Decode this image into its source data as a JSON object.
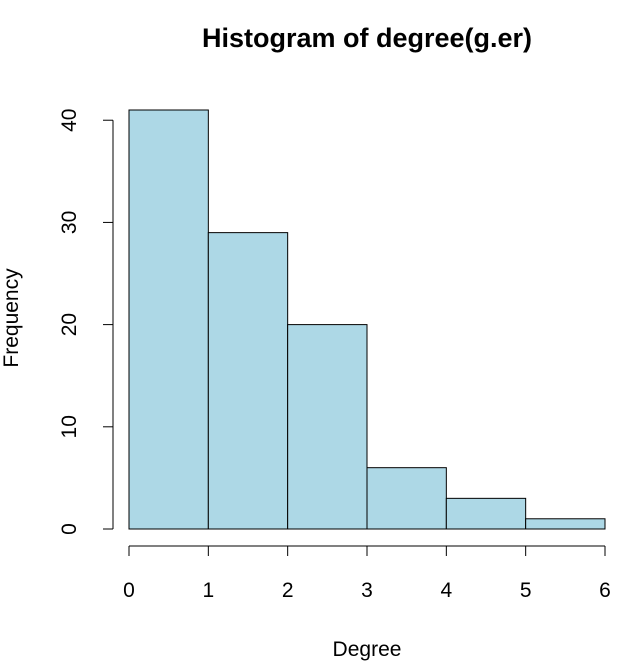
{
  "chart_data": {
    "type": "bar",
    "subtype": "histogram",
    "title": "Histogram of degree(g.er)",
    "xlabel": "Degree",
    "ylabel": "Frequency",
    "bins": [
      {
        "start": 0,
        "end": 1,
        "count": 41
      },
      {
        "start": 1,
        "end": 2,
        "count": 29
      },
      {
        "start": 2,
        "end": 3,
        "count": 20
      },
      {
        "start": 3,
        "end": 4,
        "count": 6
      },
      {
        "start": 4,
        "end": 5,
        "count": 3
      },
      {
        "start": 5,
        "end": 6,
        "count": 1
      }
    ],
    "xlim": [
      0,
      6
    ],
    "ylim": [
      0,
      41
    ],
    "x_ticks": [
      "0",
      "1",
      "2",
      "3",
      "4",
      "5",
      "6"
    ],
    "y_ticks": [
      "0",
      "10",
      "20",
      "30",
      "40"
    ],
    "bar_color": "#add8e6",
    "edge_color": "#000000",
    "grid": false
  }
}
